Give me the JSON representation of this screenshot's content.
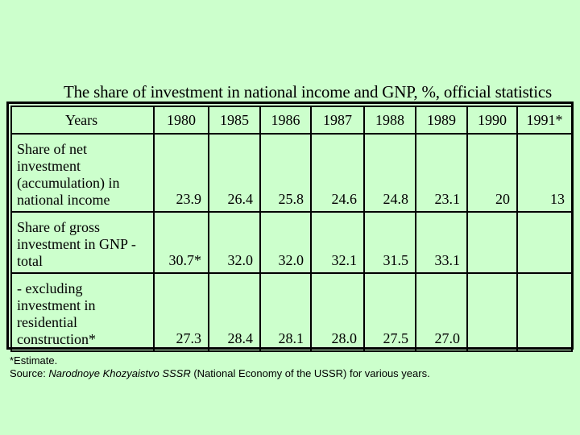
{
  "title": "The share of investment in national income and GNP, %, official statistics",
  "table": {
    "header_label": "Years",
    "years": [
      "1980",
      "1985",
      "1986",
      "1987",
      "1988",
      "1989",
      "1990",
      "1991*"
    ],
    "rows": [
      {
        "label": "Share of net investment (accumulation) in national income",
        "values": [
          "23.9",
          "26.4",
          "25.8",
          "24.6",
          "24.8",
          "23.1",
          "20",
          "13"
        ]
      },
      {
        "label": "Share of gross investment in GNP - total",
        "values": [
          "30.7*",
          "32.0",
          "32.0",
          "32.1",
          "31.5",
          "33.1",
          "",
          ""
        ]
      },
      {
        "label": " - excluding investment in residential construction*",
        "values": [
          "27.3",
          "28.4",
          "28.1",
          "28.0",
          "27.5",
          "27.0",
          "",
          ""
        ]
      }
    ]
  },
  "footnote": "*Estimate.",
  "source": {
    "prefix": "Source: ",
    "title": "Narodnoye Khozyaistvo SSSR",
    "suffix": " (National Economy of the USSR) for various years."
  }
}
